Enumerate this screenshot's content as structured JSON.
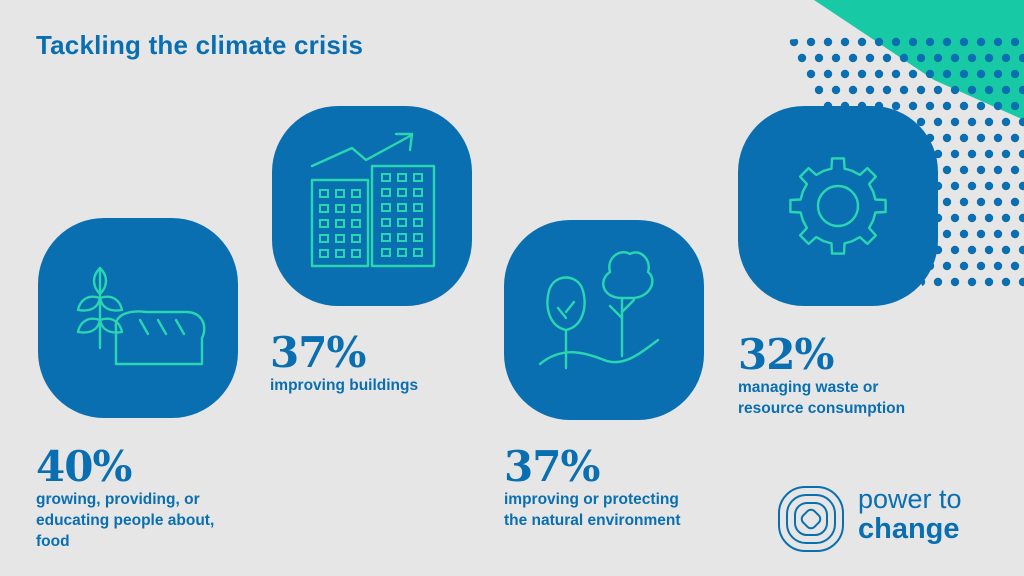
{
  "title": "Tackling the climate crisis",
  "colors": {
    "background": "#e6e6e6",
    "brand_blue": "#0a6fb0",
    "accent_teal": "#17c9a5",
    "icon_line": "#2ad6b0"
  },
  "stats": [
    {
      "percent": "40%",
      "lines": [
        "growing, providing, or",
        "educating people about,",
        "food"
      ],
      "icon": "wheat-bread-icon"
    },
    {
      "percent": "37%",
      "lines": [
        "improving buildings"
      ],
      "icon": "buildings-growth-icon"
    },
    {
      "percent": "37%",
      "lines": [
        "improving or protecting",
        "the natural environment"
      ],
      "icon": "trees-icon"
    },
    {
      "percent": "32%",
      "lines": [
        "managing waste or",
        "resource consumption"
      ],
      "icon": "gear-icon"
    }
  ],
  "logo": {
    "line1": "power to",
    "line2": "change"
  }
}
